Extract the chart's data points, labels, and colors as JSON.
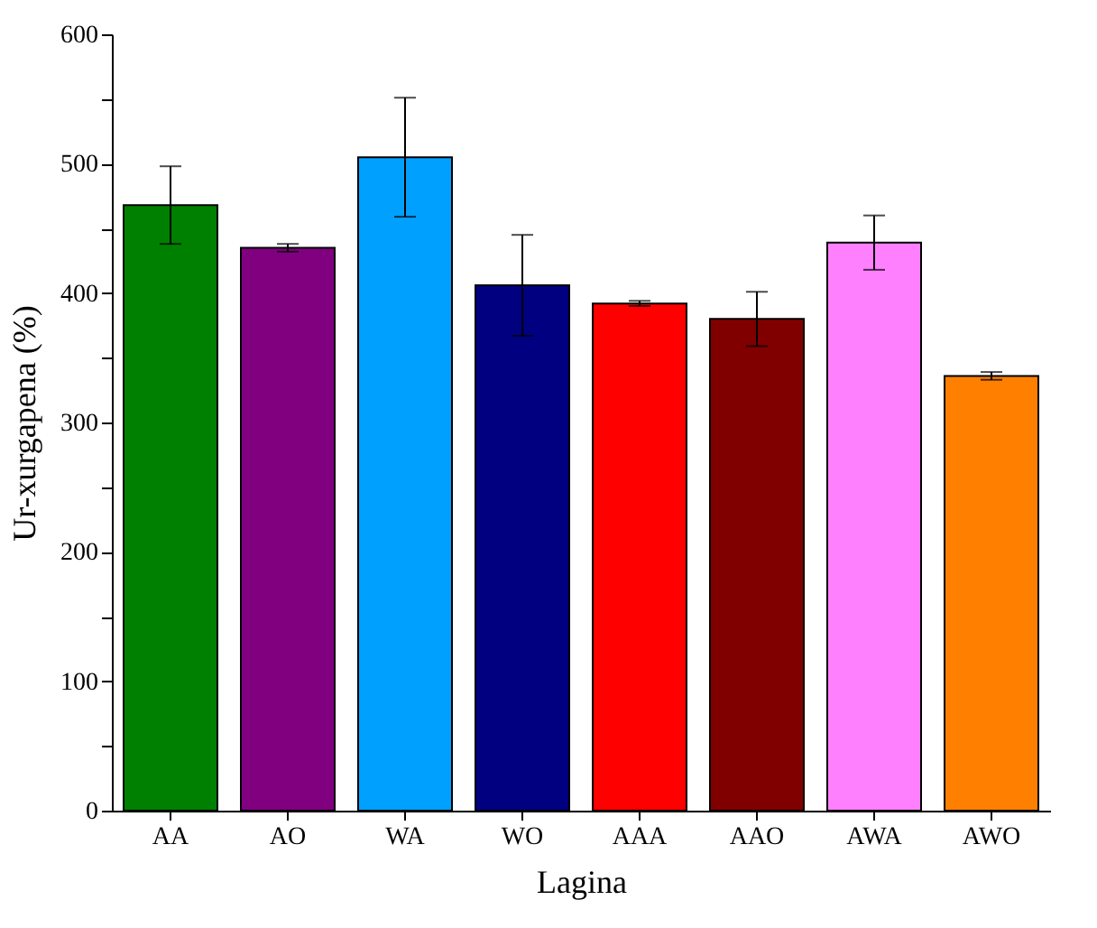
{
  "chart_data": {
    "type": "bar",
    "xlabel": "Lagina",
    "ylabel": "Ur-xurgapena (%)",
    "categories": [
      "AA",
      "AO",
      "WA",
      "WO",
      "AAA",
      "AAO",
      "AWA",
      "AWO"
    ],
    "values": [
      468,
      435,
      505,
      406,
      392,
      380,
      439,
      336
    ],
    "errors": [
      30,
      3,
      46,
      39,
      2,
      21,
      21,
      3
    ],
    "colors": [
      "#008000",
      "#800080",
      "#00a0ff",
      "#000080",
      "#ff0000",
      "#800000",
      "#ff80ff",
      "#ff8000"
    ],
    "ylim": [
      0,
      600
    ],
    "yticks": [
      0,
      {
        "value": 50,
        "label": null
      },
      100,
      {
        "value": 150,
        "label": null
      },
      200,
      {
        "value": 250,
        "label": null
      },
      300,
      {
        "value": 350,
        "label": null
      },
      400,
      {
        "value": 450,
        "label": null
      },
      500,
      {
        "value": 550,
        "label": null
      },
      600
    ],
    "grid": false,
    "legend": false
  }
}
